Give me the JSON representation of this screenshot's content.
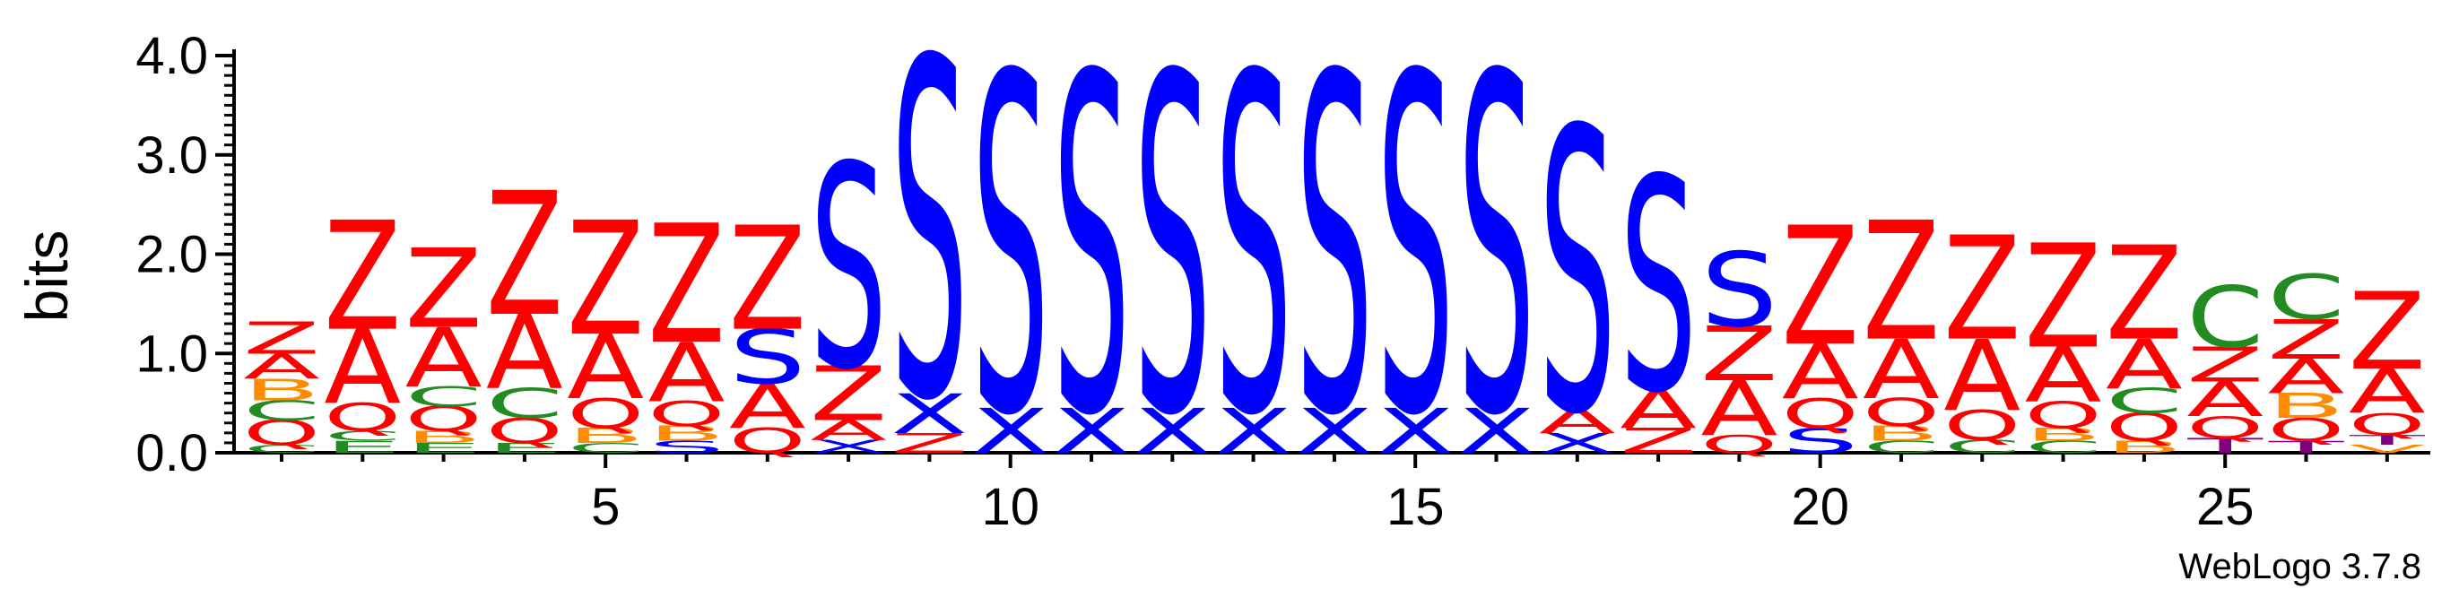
{
  "chart_data": {
    "type": "sequence-logo",
    "ylabel": "bits",
    "ylim": [
      0,
      4.0
    ],
    "y_ticks": [
      "0.0",
      "1.0",
      "2.0",
      "3.0",
      "4.0"
    ],
    "x_ticks": [
      "5",
      "10",
      "15",
      "20",
      "25"
    ],
    "x_tick_values": [
      5,
      10,
      15,
      20,
      25
    ],
    "positions": [
      1,
      27
    ],
    "credit": "WebLogo 3.7.8",
    "colors": {
      "Z": "#ff0000",
      "A": "#ff0000",
      "Q": "#ff0000",
      "S": "#0000ff",
      "X": "#0000ff",
      "C": "#228b22",
      "E": "#228b22",
      "G": "#228b22",
      "B": "#ff8c00",
      "T": "#800080",
      "V": "#ff8c00"
    },
    "columns": [
      {
        "pos": 1,
        "stack": [
          [
            "C",
            0.08
          ],
          [
            "Q",
            0.25
          ],
          [
            "C",
            0.2
          ],
          [
            "B",
            0.22
          ],
          [
            "A",
            0.25
          ],
          [
            "Z",
            0.32
          ]
        ]
      },
      {
        "pos": 2,
        "stack": [
          [
            "E",
            0.12
          ],
          [
            "C",
            0.1
          ],
          [
            "Q",
            0.28
          ],
          [
            "A",
            0.75
          ],
          [
            "Z",
            1.1
          ]
        ]
      },
      {
        "pos": 3,
        "stack": [
          [
            "E",
            0.1
          ],
          [
            "B",
            0.12
          ],
          [
            "Q",
            0.25
          ],
          [
            "C",
            0.2
          ],
          [
            "A",
            0.6
          ],
          [
            "Z",
            0.8
          ]
        ]
      },
      {
        "pos": 4,
        "stack": [
          [
            "E",
            0.1
          ],
          [
            "Q",
            0.25
          ],
          [
            "C",
            0.3
          ],
          [
            "A",
            0.75
          ],
          [
            "Z",
            1.25
          ]
        ]
      },
      {
        "pos": 5,
        "stack": [
          [
            "C",
            0.1
          ],
          [
            "B",
            0.15
          ],
          [
            "Q",
            0.3
          ],
          [
            "A",
            0.65
          ],
          [
            "Z",
            1.15
          ]
        ]
      },
      {
        "pos": 6,
        "stack": [
          [
            "S",
            0.12
          ],
          [
            "B",
            0.15
          ],
          [
            "Q",
            0.25
          ],
          [
            "A",
            0.6
          ],
          [
            "Z",
            1.2
          ]
        ]
      },
      {
        "pos": 7,
        "stack": [
          [
            "Q",
            0.25
          ],
          [
            "A",
            0.45
          ],
          [
            "S",
            0.55
          ],
          [
            "Z",
            1.05
          ]
        ]
      },
      {
        "pos": 8,
        "stack": [
          [
            "X",
            0.13
          ],
          [
            "A",
            0.2
          ],
          [
            "Z",
            0.55
          ],
          [
            "S",
            2.05
          ]
        ]
      },
      {
        "pos": 9,
        "stack": [
          [
            "Z",
            0.2
          ],
          [
            "X",
            0.4
          ],
          [
            "S",
            3.4
          ]
        ]
      },
      {
        "pos": 10,
        "stack": [
          [
            "X",
            0.45
          ],
          [
            "S",
            3.4
          ]
        ]
      },
      {
        "pos": 11,
        "stack": [
          [
            "X",
            0.45
          ],
          [
            "S",
            3.4
          ]
        ]
      },
      {
        "pos": 12,
        "stack": [
          [
            "X",
            0.45
          ],
          [
            "S",
            3.4
          ]
        ]
      },
      {
        "pos": 13,
        "stack": [
          [
            "X",
            0.45
          ],
          [
            "S",
            3.4
          ]
        ]
      },
      {
        "pos": 14,
        "stack": [
          [
            "X",
            0.45
          ],
          [
            "S",
            3.4
          ]
        ]
      },
      {
        "pos": 15,
        "stack": [
          [
            "X",
            0.45
          ],
          [
            "S",
            3.4
          ]
        ]
      },
      {
        "pos": 16,
        "stack": [
          [
            "X",
            0.45
          ],
          [
            "S",
            3.4
          ]
        ]
      },
      {
        "pos": 17,
        "stack": [
          [
            "X",
            0.2
          ],
          [
            "A",
            0.25
          ],
          [
            "S",
            2.85
          ]
        ]
      },
      {
        "pos": 18,
        "stack": [
          [
            "Z",
            0.25
          ],
          [
            "A",
            0.4
          ],
          [
            "S",
            2.15
          ]
        ]
      },
      {
        "pos": 19,
        "stack": [
          [
            "Q",
            0.18
          ],
          [
            "A",
            0.55
          ],
          [
            "Z",
            0.55
          ],
          [
            "S",
            0.75
          ]
        ]
      },
      {
        "pos": 20,
        "stack": [
          [
            "S",
            0.25
          ],
          [
            "Q",
            0.3
          ],
          [
            "A",
            0.55
          ],
          [
            "Z",
            1.2
          ]
        ]
      },
      {
        "pos": 21,
        "stack": [
          [
            "C",
            0.12
          ],
          [
            "B",
            0.15
          ],
          [
            "Q",
            0.28
          ],
          [
            "A",
            0.6
          ],
          [
            "Z",
            1.2
          ]
        ]
      },
      {
        "pos": 22,
        "stack": [
          [
            "C",
            0.13
          ],
          [
            "Q",
            0.3
          ],
          [
            "A",
            0.72
          ],
          [
            "Z",
            1.05
          ]
        ]
      },
      {
        "pos": 23,
        "stack": [
          [
            "C",
            0.12
          ],
          [
            "B",
            0.13
          ],
          [
            "Q",
            0.27
          ],
          [
            "A",
            0.55
          ],
          [
            "Z",
            1.05
          ]
        ]
      },
      {
        "pos": 24,
        "stack": [
          [
            "B",
            0.12
          ],
          [
            "Q",
            0.28
          ],
          [
            "C",
            0.25
          ],
          [
            "A",
            0.5
          ],
          [
            "Z",
            0.95
          ]
        ]
      },
      {
        "pos": 25,
        "stack": [
          [
            "T",
            0.15
          ],
          [
            "Q",
            0.22
          ],
          [
            "A",
            0.35
          ],
          [
            "Z",
            0.35
          ],
          [
            "C",
            0.62
          ]
        ]
      },
      {
        "pos": 26,
        "stack": [
          [
            "T",
            0.12
          ],
          [
            "Q",
            0.23
          ],
          [
            "B",
            0.25
          ],
          [
            "A",
            0.35
          ],
          [
            "Z",
            0.4
          ],
          [
            "C",
            0.45
          ]
        ]
      },
      {
        "pos": 27,
        "stack": [
          [
            "V",
            0.08
          ],
          [
            "T",
            0.1
          ],
          [
            "Q",
            0.22
          ],
          [
            "A",
            0.45
          ],
          [
            "Z",
            0.78
          ]
        ]
      }
    ]
  }
}
